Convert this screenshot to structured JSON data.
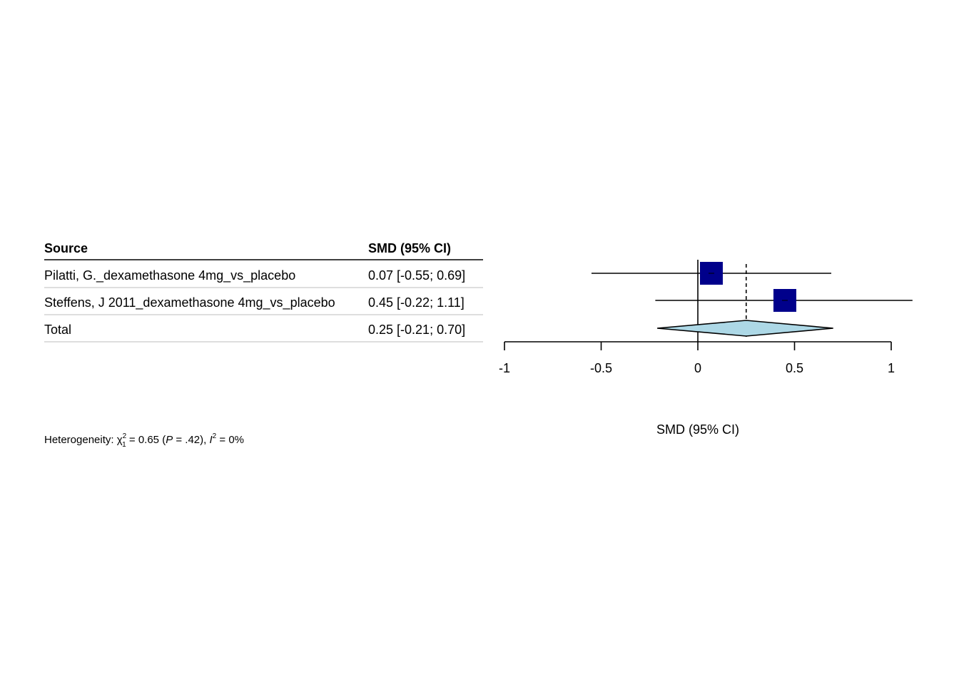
{
  "table": {
    "source_header": "Source",
    "effect_header": "SMD (95% CI)",
    "rows": [
      {
        "source": "Pilatti, G._dexamethasone 4mg_vs_placebo",
        "ci_text": "0.07 [-0.55; 0.69]"
      },
      {
        "source": "Steffens, J 2011_dexamethasone 4mg_vs_placebo",
        "ci_text": "0.45 [-0.22; 1.11]"
      },
      {
        "source": "Total",
        "ci_text": "0.25 [-0.21; 0.70]"
      }
    ]
  },
  "heterogeneity": {
    "prefix": "Heterogeneity: ",
    "chi_symbol": "χ",
    "chi_sup": "2",
    "chi_sub": "1",
    "chi_value": " = 0.65 (",
    "p_symbol": "P",
    "p_value": " = .42), ",
    "i_symbol": "I",
    "i_sup": "2",
    "i_value": " = 0%"
  },
  "chart_data": {
    "type": "forest",
    "xlabel": "SMD (95% CI)",
    "xlim": [
      -1,
      1
    ],
    "ticks": [
      -1,
      -0.5,
      0,
      0.5,
      1
    ],
    "tick_labels": [
      "-1",
      "-0.5",
      "0",
      "0.5",
      "1"
    ],
    "null_line": 0,
    "pooled_line": 0.25,
    "studies": [
      {
        "estimate": 0.07,
        "lower": -0.55,
        "upper": 0.69
      },
      {
        "estimate": 0.45,
        "lower": -0.22,
        "upper": 1.11
      }
    ],
    "pooled": {
      "estimate": 0.25,
      "lower": -0.21,
      "upper": 0.7
    },
    "colors": {
      "study_box": "#00008B",
      "pooled_diamond": "#ADD8E6"
    }
  }
}
